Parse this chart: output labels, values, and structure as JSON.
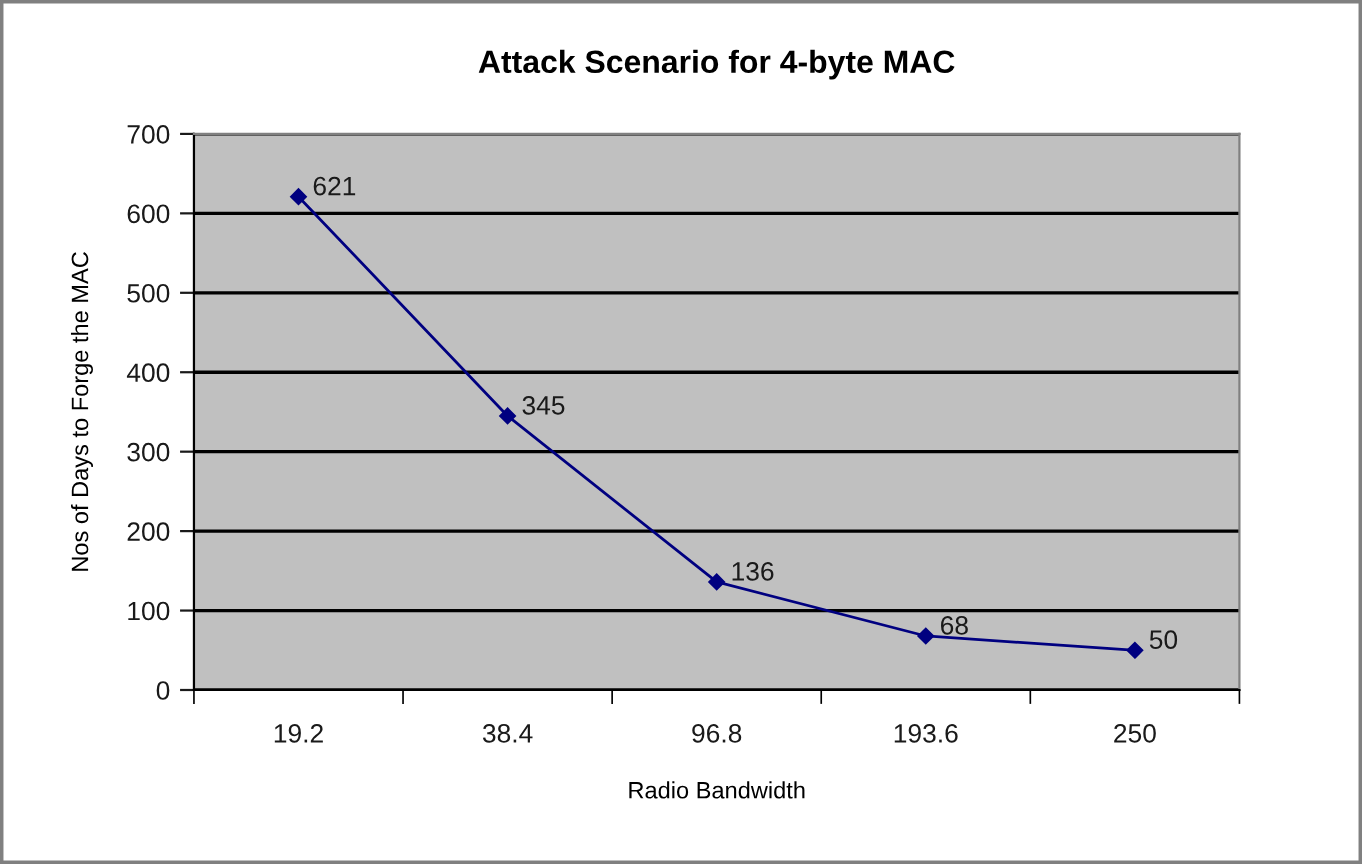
{
  "chart_data": {
    "type": "line",
    "title": "Attack Scenario for 4-byte MAC",
    "xlabel": "Radio Bandwidth",
    "ylabel": "Nos of Days to Forge the MAC",
    "categories": [
      "19.2",
      "38.4",
      "96.8",
      "193.6",
      "250"
    ],
    "series": [
      {
        "color": "#000080",
        "values": [
          621,
          345,
          136,
          68,
          50
        ]
      }
    ],
    "ylim": [
      0,
      700
    ],
    "yticks": [
      0,
      100,
      200,
      300,
      400,
      500,
      600,
      700
    ],
    "grid": "y",
    "marker": "diamond",
    "line_style": "solid",
    "data_labels": true
  }
}
